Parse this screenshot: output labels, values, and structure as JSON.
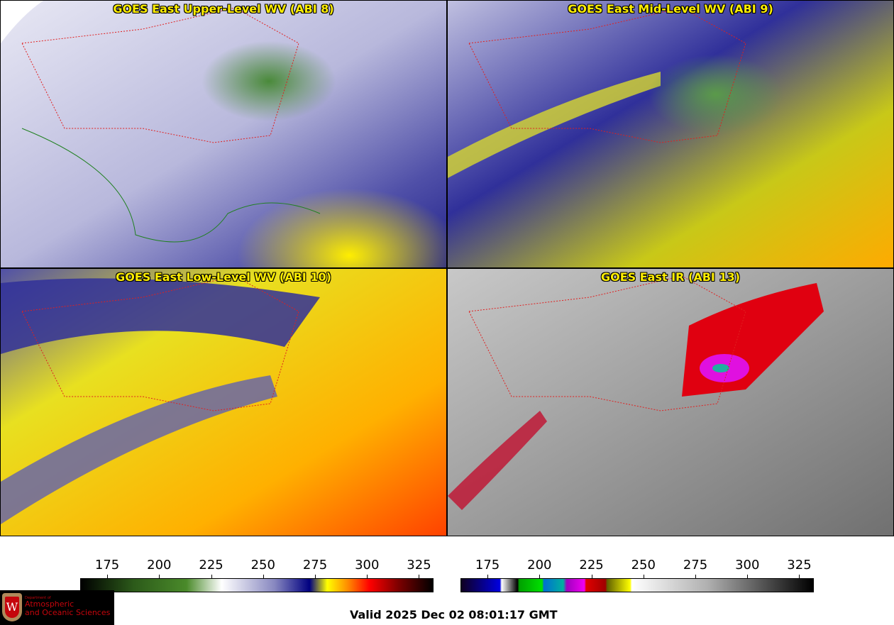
{
  "panels": [
    {
      "title": "GOES East Upper-Level WV (ABI 8)",
      "band": "wv-upper"
    },
    {
      "title": "GOES East Mid-Level WV (ABI 9)",
      "band": "wv-mid"
    },
    {
      "title": "GOES East Low-Level WV (ABI 10)",
      "band": "wv-low"
    },
    {
      "title": "GOES East IR (ABI 13)",
      "band": "ir"
    }
  ],
  "colorbars": {
    "wv": {
      "ticks": [
        "175",
        "200",
        "225",
        "250",
        "275",
        "300",
        "325"
      ],
      "range": [
        162,
        332
      ],
      "colors": [
        "#000000",
        "#2c5a1a",
        "#4a8a2a",
        "#ffffff",
        "#8888c0",
        "#000080",
        "#ffff00",
        "#ff8800",
        "#ff0000",
        "#800000",
        "#000000"
      ]
    },
    "ir": {
      "ticks": [
        "175",
        "200",
        "225",
        "250",
        "275",
        "300",
        "325"
      ],
      "range": [
        162,
        332
      ]
    }
  },
  "valid_time": "Valid 2025 Dec 02 08:01:17 GMT",
  "logo": {
    "line1": "Department of",
    "line2": "Atmospheric",
    "line3": "and Oceanic Sciences",
    "mark": "W"
  }
}
